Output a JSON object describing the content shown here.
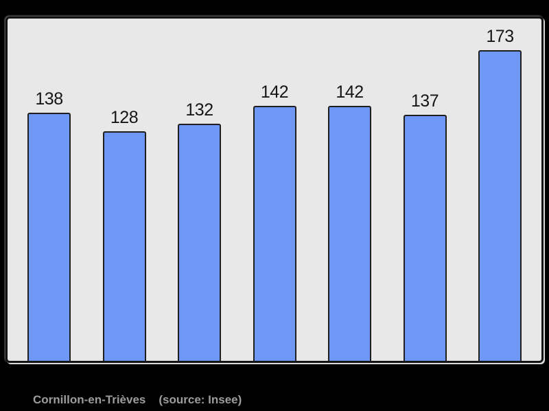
{
  "chart_data": {
    "type": "bar",
    "categories": [
      "",
      "",
      "",
      "",
      "",
      "",
      ""
    ],
    "values": [
      138,
      128,
      132,
      142,
      142,
      137,
      173
    ],
    "data_labels": [
      "138",
      "128",
      "132",
      "142",
      "142",
      "137",
      "173"
    ],
    "title": "",
    "xlabel": "",
    "ylabel": "",
    "ylim": [
      0,
      190
    ],
    "grid": false,
    "legend": "none",
    "bar_count": 7
  },
  "caption": {
    "commune": "Cornillon-en-Trièves",
    "source": "(source: Insee)"
  },
  "colors": {
    "page_bg": "#000000",
    "panel_bg": "#e8e8e8",
    "panel_border": "#141414",
    "bar_fill": "#6e97f7",
    "bar_border": "#1e1e1e",
    "value_label_text": "#151515",
    "caption_text": "#9d9d9d"
  }
}
